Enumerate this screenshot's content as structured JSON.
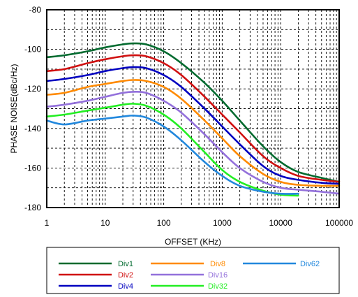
{
  "chart_data": {
    "type": "line",
    "title": "",
    "xlabel": "OFFSET (KHz)",
    "ylabel": "PHASE NOISE(dBc/Hz)",
    "xscale": "log",
    "xlim": [
      1,
      100000
    ],
    "ylim": [
      -180,
      -80
    ],
    "grid": true,
    "grid_style": "dashed, with log minor gridlines",
    "legend_position": "bottom, boxed, three columns",
    "x_ticks": [
      "1",
      "10",
      "100",
      "1000",
      "10000",
      "100000"
    ],
    "y_ticks": [
      "-80",
      "-100",
      "-120",
      "-140",
      "-160",
      "-180"
    ],
    "x": [
      1,
      2,
      5,
      10,
      20,
      30,
      50,
      100,
      200,
      500,
      1000,
      2000,
      5000,
      10000,
      20000,
      50000,
      100000
    ],
    "series": [
      {
        "name": "Div1",
        "color": "#006a2e",
        "values": [
          -104,
          -103,
          -101,
          -99,
          -97.5,
          -97,
          -97.5,
          -101,
          -107,
          -117,
          -126,
          -136,
          -149,
          -157,
          -162,
          -165,
          -167
        ]
      },
      {
        "name": "Div2",
        "color": "#d01010",
        "values": [
          -111,
          -110,
          -107,
          -105,
          -103.5,
          -103,
          -103.5,
          -107,
          -113,
          -124,
          -133,
          -142,
          -154,
          -160,
          -164,
          -166,
          -167
        ]
      },
      {
        "name": "Div4",
        "color": "#0000c0",
        "values": [
          -116,
          -115,
          -113,
          -111,
          -109.5,
          -109,
          -109.5,
          -113,
          -119,
          -130,
          -139,
          -148,
          -159,
          -164,
          -166,
          -167.5,
          -168
        ]
      },
      {
        "name": "Div8",
        "color": "#ff8a00",
        "values": [
          -123,
          -122,
          -119,
          -117.5,
          -116,
          -115.5,
          -116,
          -119,
          -125,
          -136,
          -145,
          -154,
          -163,
          -167,
          -168.5,
          -169,
          -169
        ]
      },
      {
        "name": "Div16",
        "color": "#9370db",
        "values": [
          -129,
          -128,
          -126,
          -124,
          -122,
          -121.5,
          -122,
          -126,
          -132,
          -143,
          -152,
          -160,
          -167,
          -170,
          -171,
          -172,
          -173
        ]
      },
      {
        "name": "Div32",
        "color": "#22ee22",
        "values": [
          -134,
          -133,
          -131,
          -129.5,
          -128,
          -127.5,
          -128.5,
          -133,
          -140,
          -152,
          -161,
          -167,
          -171.5,
          -173.5,
          -174,
          null,
          null
        ]
      },
      {
        "name": "Div62",
        "color": "#2288dd",
        "values": [
          -136,
          -138,
          -136,
          -135,
          -134,
          -133.5,
          -134.5,
          -139,
          -146,
          -157,
          -164,
          -169,
          -172,
          -173,
          -173,
          null,
          null
        ]
      }
    ]
  }
}
